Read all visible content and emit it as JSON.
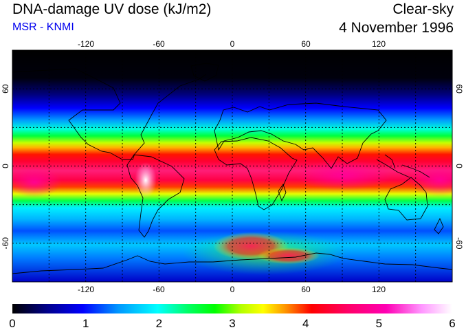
{
  "header": {
    "title": "DNA-damage UV dose (kJ/m2)",
    "subtitle": "MSR - KNMI",
    "condition": "Clear-sky",
    "date": "4 November 1996"
  },
  "map": {
    "projection": "equirectangular",
    "lon_range": [
      -180,
      180
    ],
    "lat_range": [
      -90,
      90
    ],
    "lon_ticks": [
      -120,
      -60,
      0,
      60,
      120
    ],
    "lat_ticks": [
      60,
      0,
      -60
    ],
    "lon_tick_labels": [
      "-120",
      "-60",
      "0",
      "60",
      "120"
    ],
    "lat_tick_labels": [
      "60",
      "0",
      "-60"
    ],
    "gridlines": "dotted every 30 degrees"
  },
  "colorbar": {
    "min": 0,
    "max": 6,
    "labels": [
      "0",
      "1",
      "2",
      "3",
      "4",
      "5",
      "6"
    ]
  },
  "colors": {
    "subtitle": "#0000ee",
    "palette": [
      "#000000",
      "#00008c",
      "#0000ff",
      "#0096ff",
      "#00ffff",
      "#00ff64",
      "#00ff00",
      "#b4ff00",
      "#ffff00",
      "#ff9600",
      "#ff0000",
      "#ff0064",
      "#ff00b4",
      "#ff96ff",
      "#ffffff"
    ]
  }
}
